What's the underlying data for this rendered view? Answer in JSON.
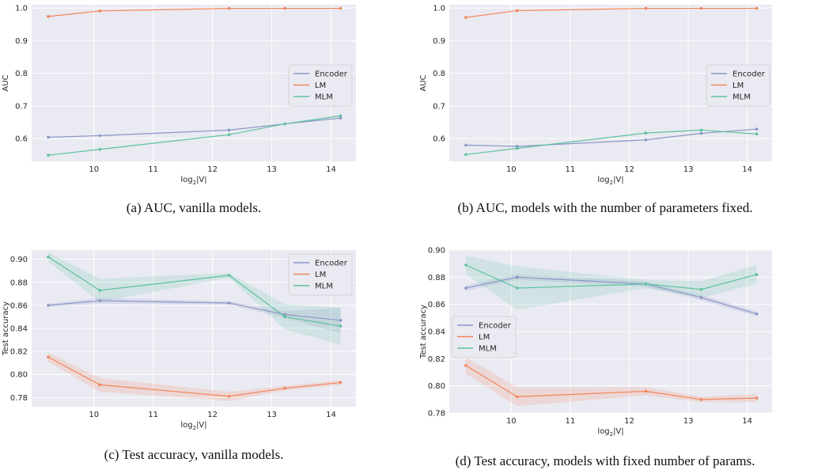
{
  "colors": {
    "Encoder": "#8a96c6",
    "LM": "#f4845a",
    "MLM": "#5cc29e",
    "panel_bg": "#eaeaf2",
    "grid": "#ffffff"
  },
  "chart_data": [
    {
      "type": "line",
      "caption": "(a) AUC, vanilla models.",
      "xlabel": "log2|V|",
      "ylabel": "AUC",
      "x": [
        9.23,
        10.1,
        12.28,
        13.22,
        14.16
      ],
      "xlim": [
        8.95,
        14.42
      ],
      "ylim": [
        0.53,
        1.01
      ],
      "xticks": [
        10,
        11,
        12,
        13,
        14
      ],
      "yticks": [
        0.6,
        0.7,
        0.8,
        0.9,
        1.0
      ],
      "ytick_labels": [
        "0.6",
        "0.7",
        "0.8",
        "0.9",
        "1.0"
      ],
      "grid": true,
      "legend": "center-right",
      "series": [
        {
          "name": "Encoder",
          "values": [
            0.604,
            0.609,
            0.626,
            0.645,
            0.663
          ]
        },
        {
          "name": "LM",
          "values": [
            0.974,
            0.991,
            0.999,
            0.999,
            0.999
          ]
        },
        {
          "name": "MLM",
          "values": [
            0.549,
            0.567,
            0.612,
            0.645,
            0.67
          ]
        }
      ]
    },
    {
      "type": "line",
      "caption": "(b) AUC, models with the number of parameters fixed.",
      "xlabel": "log2|V|",
      "ylabel": "AUC",
      "x": [
        9.23,
        10.1,
        12.28,
        13.22,
        14.16
      ],
      "xlim": [
        8.95,
        14.42
      ],
      "ylim": [
        0.53,
        1.01
      ],
      "xticks": [
        10,
        11,
        12,
        13,
        14
      ],
      "yticks": [
        0.6,
        0.7,
        0.8,
        0.9,
        1.0
      ],
      "ytick_labels": [
        "0.6",
        "0.7",
        "0.8",
        "0.9",
        "1.0"
      ],
      "grid": true,
      "legend": "center-right",
      "series": [
        {
          "name": "Encoder",
          "values": [
            0.58,
            0.576,
            0.596,
            0.616,
            0.629
          ]
        },
        {
          "name": "LM",
          "values": [
            0.971,
            0.992,
            0.999,
            0.999,
            0.999
          ]
        },
        {
          "name": "MLM",
          "values": [
            0.551,
            0.57,
            0.617,
            0.626,
            0.614
          ]
        }
      ]
    },
    {
      "type": "line",
      "caption": "(c) Test accuracy, vanilla models.",
      "xlabel": "log2|V|",
      "ylabel": "Test accuracy",
      "x": [
        9.23,
        10.1,
        12.28,
        13.22,
        14.16
      ],
      "xlim": [
        8.95,
        14.42
      ],
      "ylim": [
        0.772,
        0.908
      ],
      "xticks": [
        10,
        11,
        12,
        13,
        14
      ],
      "yticks": [
        0.78,
        0.8,
        0.82,
        0.84,
        0.86,
        0.88,
        0.9
      ],
      "ytick_labels": [
        "0.78",
        "0.80",
        "0.82",
        "0.84",
        "0.86",
        "0.88",
        "0.90"
      ],
      "grid": true,
      "legend": "top-right",
      "series": [
        {
          "name": "Encoder",
          "values": [
            0.86,
            0.864,
            0.862,
            0.852,
            0.847
          ],
          "band": [
            0.0015,
            0.0025,
            0.0015,
            0.003,
            0.011
          ]
        },
        {
          "name": "LM",
          "values": [
            0.815,
            0.791,
            0.781,
            0.788,
            0.793
          ],
          "band": [
            0.004,
            0.006,
            0.004,
            0.002,
            0.002
          ]
        },
        {
          "name": "MLM",
          "values": [
            0.902,
            0.873,
            0.886,
            0.85,
            0.842
          ],
          "band": [
            0.004,
            0.01,
            0.002,
            0.011,
            0.016
          ]
        }
      ]
    },
    {
      "type": "line",
      "caption": "(d) Test accuracy, models with fixed number of params.",
      "xlabel": "log2|V|",
      "ylabel": "Test accuracy",
      "x": [
        9.23,
        10.1,
        12.28,
        13.22,
        14.16
      ],
      "xlim": [
        8.95,
        14.42
      ],
      "ylim": [
        0.78,
        0.9
      ],
      "xticks": [
        10,
        11,
        12,
        13,
        14
      ],
      "yticks": [
        0.78,
        0.8,
        0.82,
        0.84,
        0.86,
        0.88,
        0.9
      ],
      "ytick_labels": [
        "0.78",
        "0.80",
        "0.82",
        "0.84",
        "0.86",
        "0.88",
        "0.90"
      ],
      "grid": true,
      "legend": "center-left",
      "series": [
        {
          "name": "Encoder",
          "values": [
            0.872,
            0.88,
            0.875,
            0.865,
            0.853
          ],
          "band": [
            0.002,
            0.002,
            0.002,
            0.002,
            0.002
          ]
        },
        {
          "name": "LM",
          "values": [
            0.815,
            0.792,
            0.796,
            0.79,
            0.791
          ],
          "band": [
            0.006,
            0.007,
            0.003,
            0.002,
            0.003
          ]
        },
        {
          "name": "MLM",
          "values": [
            0.889,
            0.872,
            0.875,
            0.871,
            0.882
          ],
          "band": [
            0.007,
            0.016,
            0.003,
            0.006,
            0.007
          ]
        }
      ]
    }
  ]
}
